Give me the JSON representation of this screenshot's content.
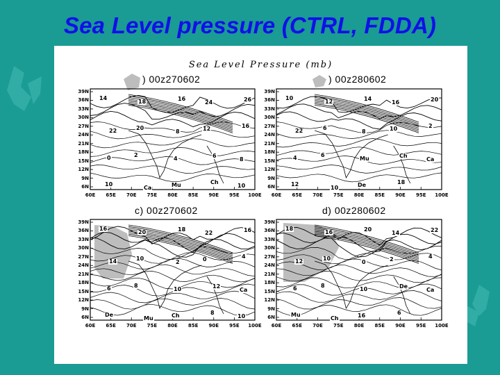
{
  "slide": {
    "title": "Sea Level pressure (CTRL, FDDA)"
  },
  "colors": {
    "background": "#1a9b94",
    "title": "#1010e8",
    "shading": "#bdbdbd"
  },
  "figure": {
    "title": "Sea Level Pressure (mb)",
    "y_ticks": [
      "39N",
      "36N",
      "33N",
      "30N",
      "27N",
      "24N",
      "21N",
      "18N",
      "15N",
      "12N",
      "9N",
      "6N"
    ],
    "x_ticks": [
      "60E",
      "65E",
      "70E",
      "75E",
      "80E",
      "85E",
      "90E",
      "95E",
      "100E"
    ],
    "panels": [
      {
        "title": ") 00z270602",
        "contour_labels": [
          "14",
          "18",
          "16",
          "24",
          "26",
          "22",
          "20",
          "8",
          "12",
          "16",
          "0",
          "2",
          "4",
          "6",
          "8",
          "10",
          "Ca",
          "Mu",
          "Ch",
          "10"
        ]
      },
      {
        "title": ") 00z280602",
        "contour_labels": [
          "10",
          "12",
          "14",
          "16",
          "20",
          "22",
          "6",
          "8",
          "10",
          "2",
          "4",
          "6",
          "Mu",
          "Ch",
          "Ca",
          "12",
          "10",
          "De",
          "18"
        ]
      },
      {
        "title": "c) 00z270602",
        "contour_labels": [
          "16",
          "20",
          "18",
          "22",
          "16",
          "14",
          "10",
          "2",
          "0",
          "4",
          "6",
          "8",
          "10",
          "12",
          "Ca",
          "De",
          "Mu",
          "Ch",
          "8",
          "10"
        ]
      },
      {
        "title": "d) 00z280602",
        "contour_labels": [
          "18",
          "16",
          "20",
          "14",
          "22",
          "12",
          "10",
          "0",
          "2",
          "4",
          "6",
          "8",
          "10",
          "De",
          "Ca",
          "Mu",
          "Ch",
          "16",
          "6"
        ]
      }
    ]
  }
}
